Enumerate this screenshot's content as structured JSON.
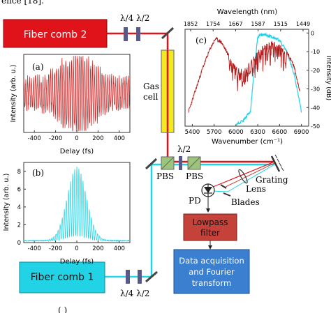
{
  "header": {
    "citation": "ence [18]."
  },
  "components": {
    "fiber_comb_2": "Fiber comb 2",
    "fiber_comb_1": "Fiber comb 1",
    "gas_cell": [
      "Gas",
      "cell"
    ],
    "pbs_left": "PBS",
    "pbs_right": "PBS",
    "half_wave_mid": "λ/2",
    "top_waveplates": "λ/4 λ/2",
    "bottom_waveplates": "λ/4 λ/2",
    "grating": "Grating",
    "lens": "Lens",
    "blades": "Blades",
    "pd": "PD",
    "lowpass_filter": [
      "Lowpass",
      "filter"
    ],
    "daq": [
      "Data acquisition",
      "and Fourier",
      "transform"
    ]
  },
  "colors": {
    "comb2": "#e0121a",
    "comb1": "#22d3e6",
    "gas_cell": "#f2ea1e",
    "filter": "#c4423a",
    "daq": "#3b7fd0",
    "pbs": "#9cc47c"
  },
  "bottom_fragment": "(  )",
  "chart_data": [
    {
      "id": "a",
      "type": "line",
      "panel_label": "(a)",
      "xlabel": "Delay (fs)",
      "ylabel": "Intensity (arb. u.)",
      "x_ticks": [
        -400,
        -200,
        0,
        200,
        400
      ],
      "xlim": [
        -500,
        500
      ],
      "color": "#cc1f1f",
      "series": [
        {
          "kind": "interferogram",
          "envelope_width_fs": 140,
          "noise_level": 0.12
        }
      ]
    },
    {
      "id": "b",
      "type": "line",
      "panel_label": "(b)",
      "xlabel": "Delay (fs)",
      "ylabel": "Intensity (arb. u.)",
      "x_ticks": [
        -400,
        -200,
        0,
        200,
        400
      ],
      "xlim": [
        -500,
        500
      ],
      "y_ticks": [
        0,
        2,
        4,
        6,
        8
      ],
      "ylim": [
        0,
        9
      ],
      "color": "#1fd4e6",
      "series": [
        {
          "kind": "interferogram",
          "peak": 7.8,
          "envelope_width_fs": 90
        }
      ]
    },
    {
      "id": "c",
      "type": "line",
      "panel_label": "(c)",
      "xlabel": "Wavenumber (cm⁻¹)",
      "ylabel": "Intensity (dB)",
      "top_xlabel": "Wavelength (nm)",
      "x_ticks": [
        5400,
        5700,
        6000,
        6300,
        6600,
        6900
      ],
      "xlim": [
        5300,
        7000
      ],
      "top_ticks": [
        1852,
        1754,
        1667,
        1587,
        1515,
        1449
      ],
      "y_ticks": [
        0,
        -10,
        -20,
        -30,
        -40,
        -50
      ],
      "ylim": [
        -50,
        2
      ],
      "series": [
        {
          "name": "",
          "color": "#b01a1a",
          "x": [
            5350,
            5450,
            5550,
            5650,
            5720,
            5800,
            5900,
            6000,
            6100,
            6200,
            6300,
            6400,
            6500,
            6600,
            6700,
            6800,
            6880
          ],
          "y": [
            -42,
            -30,
            -18,
            -8,
            -3,
            -5,
            -12,
            -18,
            -20,
            -14,
            -10,
            -6,
            -4,
            -6,
            -10,
            -18,
            -32
          ]
        },
        {
          "name": "",
          "color": "#22d3e6",
          "x": [
            6000,
            6100,
            6200,
            6250,
            6300,
            6350,
            6400,
            6500,
            6600,
            6700,
            6800,
            6900
          ],
          "y": [
            -49,
            -47,
            -42,
            -20,
            -2,
            -1,
            -1,
            -2,
            -4,
            -10,
            -22,
            -42
          ]
        }
      ]
    }
  ]
}
